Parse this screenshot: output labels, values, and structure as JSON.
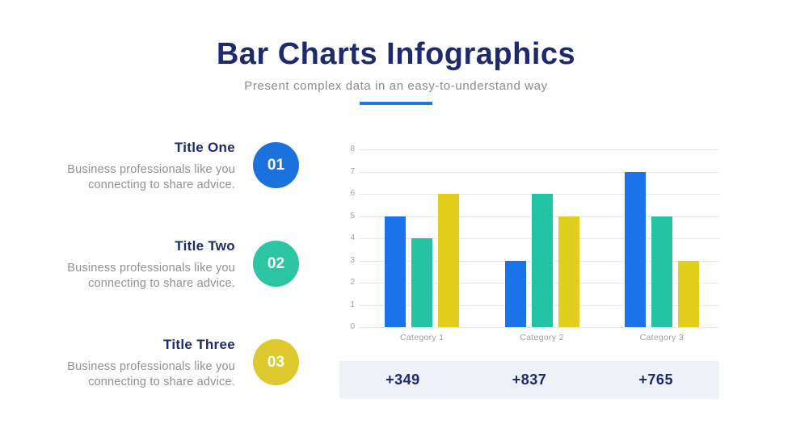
{
  "page": {
    "title": "Bar Charts Infographics",
    "subtitle": "Present complex data in an easy-to-understand way"
  },
  "features": [
    {
      "number": "01",
      "title": "Title One",
      "description": "Business professionals like you connecting to share advice.",
      "color": "#1b72dd"
    },
    {
      "number": "02",
      "title": "Title Two",
      "description": "Business professionals like you connecting to share advice.",
      "color": "#2cc5a4"
    },
    {
      "number": "03",
      "title": "Title Three",
      "description": "Business professionals like you connecting to share advice.",
      "color": "#ddc92d"
    }
  ],
  "chart_data": {
    "type": "bar",
    "title": "",
    "xlabel": "",
    "ylabel": "",
    "categories": [
      "Category 1",
      "Category 2",
      "Category 3"
    ],
    "series": [
      {
        "name": "blue-series",
        "color": "#1a73e8",
        "values": [
          5,
          3,
          7
        ]
      },
      {
        "name": "teal-series",
        "color": "#23c3a4",
        "values": [
          4,
          6,
          5
        ]
      },
      {
        "name": "yellow-series",
        "color": "#e2cf1d",
        "values": [
          6,
          5,
          3
        ]
      }
    ],
    "ylim": [
      0,
      8
    ],
    "ytick_step": 1,
    "grid": true,
    "legend_position": "none"
  },
  "summary": {
    "values": [
      "+349",
      "+837",
      "+765"
    ]
  },
  "colors": {
    "accent_navy": "#1e2a6d",
    "underline_blue": "#2478d9",
    "summary_background": "#eef1f6",
    "gridline": "#e8e8e8"
  }
}
